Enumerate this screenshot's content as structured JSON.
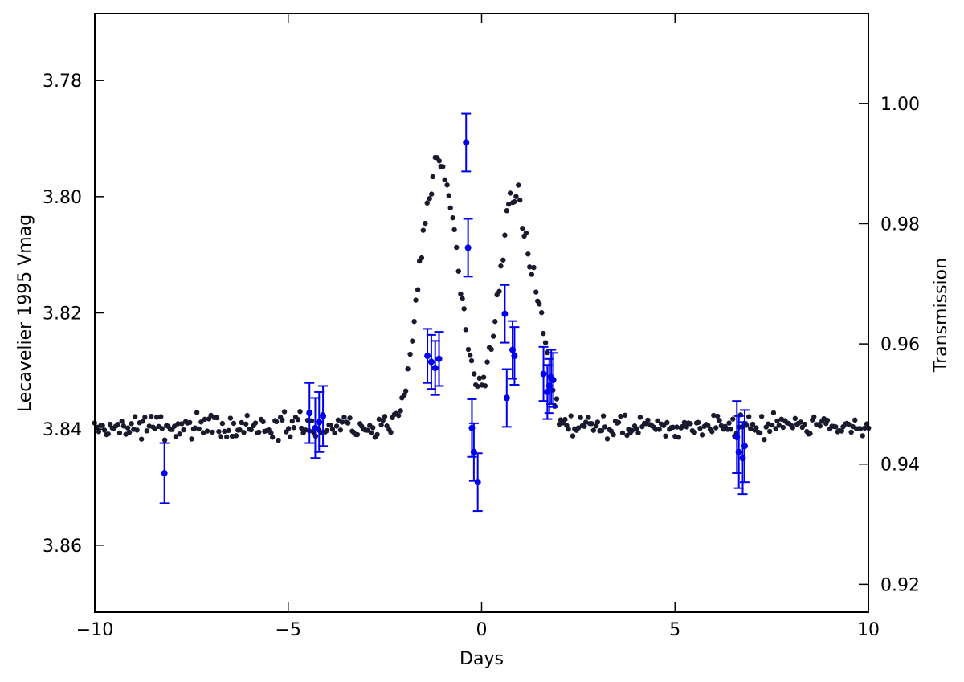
{
  "chart_data": {
    "type": "scatter",
    "xlabel": "Days",
    "ylabel_left": "Lecavelier 1995 Vmag",
    "ylabel_right": "Transmission",
    "xlim": [
      -10,
      10
    ],
    "ylim_left": [
      3.8715,
      3.7685
    ],
    "ylim_right": [
      0.91537,
      1.01495
    ],
    "x_ticks": [
      -10,
      -5,
      0,
      5,
      10
    ],
    "x_tick_labels": [
      "−10",
      "−5",
      "0",
      "5",
      "10"
    ],
    "y_left_ticks": [
      3.78,
      3.8,
      3.82,
      3.84,
      3.86
    ],
    "y_left_tick_labels": [
      "3.78",
      "3.80",
      "3.82",
      "3.84",
      "3.86"
    ],
    "y_right_ticks": [
      1.0,
      0.98,
      0.96,
      0.94,
      0.92
    ],
    "y_right_tick_labels": [
      "1.00",
      "0.98",
      "0.96",
      "0.94",
      "0.92"
    ],
    "grid": false,
    "colors": {
      "photometry": "#1a1a2e",
      "transmission": "#0000ee",
      "axes": "#000000"
    },
    "series": [
      {
        "axis": "left",
        "marker": "dot",
        "color": "#1a1a2e",
        "baseline": 3.8395,
        "scatter": 0.0012,
        "step": 0.05,
        "features": [
          {
            "x": -1.0,
            "depth": 0.043,
            "width": 0.42
          },
          {
            "x": 0.85,
            "depth": 0.04,
            "width": 0.4
          },
          {
            "x": -1.55,
            "depth": 0.012,
            "width": 0.28
          },
          {
            "x": 1.55,
            "depth": 0.01,
            "width": 0.22
          }
        ],
        "x_range": [
          -10,
          10
        ]
      },
      {
        "axis": "right",
        "marker": "errorbar",
        "color": "#0000ee",
        "points": [
          {
            "x": -8.2,
            "y": 0.9385,
            "err": 0.005
          },
          {
            "x": -4.45,
            "y": 0.9485,
            "err": 0.005
          },
          {
            "x": -4.3,
            "y": 0.946,
            "err": 0.005
          },
          {
            "x": -4.2,
            "y": 0.947,
            "err": 0.005
          },
          {
            "x": -4.1,
            "y": 0.948,
            "err": 0.005
          },
          {
            "x": -1.4,
            "y": 0.958,
            "err": 0.0045
          },
          {
            "x": -1.3,
            "y": 0.957,
            "err": 0.0045
          },
          {
            "x": -1.2,
            "y": 0.956,
            "err": 0.0045
          },
          {
            "x": -1.1,
            "y": 0.9575,
            "err": 0.0045
          },
          {
            "x": -0.4,
            "y": 0.9935,
            "err": 0.0048
          },
          {
            "x": -0.35,
            "y": 0.976,
            "err": 0.0048
          },
          {
            "x": -0.25,
            "y": 0.946,
            "err": 0.0048
          },
          {
            "x": -0.2,
            "y": 0.942,
            "err": 0.0048
          },
          {
            "x": -0.1,
            "y": 0.937,
            "err": 0.0048
          },
          {
            "x": 0.6,
            "y": 0.965,
            "err": 0.0048
          },
          {
            "x": 0.65,
            "y": 0.951,
            "err": 0.0048
          },
          {
            "x": 0.8,
            "y": 0.959,
            "err": 0.0048
          },
          {
            "x": 0.85,
            "y": 0.958,
            "err": 0.0048
          },
          {
            "x": 1.6,
            "y": 0.955,
            "err": 0.0045
          },
          {
            "x": 1.7,
            "y": 0.952,
            "err": 0.0045
          },
          {
            "x": 1.75,
            "y": 0.953,
            "err": 0.0045
          },
          {
            "x": 1.8,
            "y": 0.9545,
            "err": 0.0045
          },
          {
            "x": 1.85,
            "y": 0.954,
            "err": 0.0045
          },
          {
            "x": 6.6,
            "y": 0.9445,
            "err": 0.006
          },
          {
            "x": 6.65,
            "y": 0.942,
            "err": 0.006
          },
          {
            "x": 6.75,
            "y": 0.941,
            "err": 0.006
          },
          {
            "x": 6.8,
            "y": 0.943,
            "err": 0.006
          }
        ]
      }
    ]
  }
}
